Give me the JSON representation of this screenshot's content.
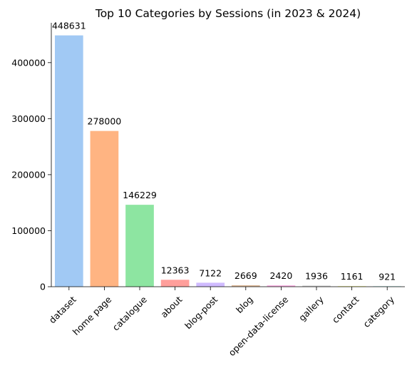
{
  "chart_data": {
    "type": "bar",
    "title": "Top 10 Categories by Sessions (in 2023 & 2024)",
    "xlabel": "",
    "ylabel": "",
    "categories": [
      "dataset",
      "home page",
      "catalogue",
      "about",
      "blog-post",
      "blog",
      "open-data-license",
      "gallery",
      "contact",
      "category"
    ],
    "values": [
      448631,
      278000,
      146229,
      12363,
      7122,
      2669,
      2420,
      1936,
      1161,
      921
    ],
    "data_labels": [
      "448631",
      "278000",
      "146229",
      "12363",
      "7122",
      "2669",
      "2420",
      "1936",
      "1161",
      "921"
    ],
    "yticks": [
      0,
      100000,
      200000,
      300000,
      400000
    ],
    "ytick_labels": [
      "0",
      "100000",
      "200000",
      "300000",
      "400000"
    ],
    "ylim": [
      0,
      471063
    ],
    "grid": false,
    "legend": "none",
    "colors": [
      "#a1c9f4",
      "#ffb482",
      "#8de5a1",
      "#ff9f9b",
      "#d0bbff",
      "#debb9b",
      "#fab0e4",
      "#cfcfcf",
      "#fffea3",
      "#b9f2f0"
    ]
  }
}
